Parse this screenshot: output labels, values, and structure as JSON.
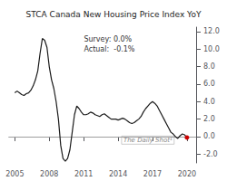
{
  "chart_data": {
    "type": "line",
    "title": "STCA Canada New Housing Price Index YoY",
    "annotations": [
      "Survey: 0.0%",
      "Actual:  -0.1%",
      "The Daily Shot¹"
    ],
    "x": [
      2005.0,
      2005.2,
      2005.4,
      2005.6,
      2005.8,
      2006.0,
      2006.2,
      2006.4,
      2006.6,
      2006.8,
      2007.0,
      2007.2,
      2007.4,
      2007.6,
      2007.8,
      2008.0,
      2008.2,
      2008.4,
      2008.6,
      2008.8,
      2009.0,
      2009.2,
      2009.4,
      2009.6,
      2009.8,
      2010.0,
      2010.2,
      2010.4,
      2010.6,
      2010.8,
      2011.0,
      2011.2,
      2011.4,
      2011.6,
      2011.8,
      2012.0,
      2012.2,
      2012.4,
      2012.6,
      2012.8,
      2013.0,
      2013.2,
      2013.4,
      2013.6,
      2013.8,
      2014.0,
      2014.2,
      2014.4,
      2014.6,
      2014.8,
      2015.0,
      2015.2,
      2015.4,
      2015.6,
      2015.8,
      2016.0,
      2016.2,
      2016.4,
      2016.6,
      2016.8,
      2017.0,
      2017.2,
      2017.4,
      2017.6,
      2017.8,
      2018.0,
      2018.2,
      2018.4,
      2018.6,
      2018.8,
      2019.0,
      2019.2,
      2019.4,
      2019.6,
      2019.8,
      2020.0
    ],
    "values": [
      5.0,
      5.2,
      5.0,
      4.8,
      4.7,
      4.9,
      5.0,
      5.3,
      5.8,
      6.5,
      7.5,
      9.5,
      11.2,
      11.0,
      10.2,
      8.0,
      6.5,
      5.5,
      4.0,
      2.0,
      -1.0,
      -2.5,
      -2.8,
      -2.5,
      -1.5,
      0.5,
      2.5,
      3.5,
      3.2,
      2.8,
      2.5,
      2.5,
      2.6,
      2.8,
      2.7,
      2.5,
      2.4,
      2.3,
      2.5,
      2.6,
      2.4,
      2.2,
      2.0,
      2.0,
      2.0,
      1.9,
      2.0,
      2.1,
      2.0,
      1.8,
      1.6,
      1.5,
      1.6,
      1.8,
      2.0,
      2.3,
      2.8,
      3.2,
      3.5,
      3.8,
      4.0,
      3.8,
      3.5,
      3.0,
      2.5,
      2.0,
      1.5,
      1.0,
      0.5,
      0.3,
      0.0,
      -0.2,
      0.1,
      0.3,
      0.2,
      -0.1
    ],
    "color": "#1a1a1a",
    "xlim": [
      2004.5,
      2020.8
    ],
    "xticks": [
      2005,
      2008,
      2011,
      2014,
      2017,
      2020
    ],
    "ylim": [
      -3.0,
      12.5
    ],
    "yticks": [
      {
        "value": -2.0,
        "label": "-2.0"
      },
      {
        "value": 0.0,
        "label": "0.0"
      },
      {
        "value": 2.0,
        "label": "2.0"
      },
      {
        "value": 4.0,
        "label": "4.0"
      },
      {
        "value": 6.0,
        "label": "6.0"
      },
      {
        "value": 8.0,
        "label": "8.0"
      },
      {
        "value": 10.0,
        "label": "10.0"
      },
      {
        "value": 12.0,
        "label": "12.0"
      }
    ],
    "grid": false
  }
}
